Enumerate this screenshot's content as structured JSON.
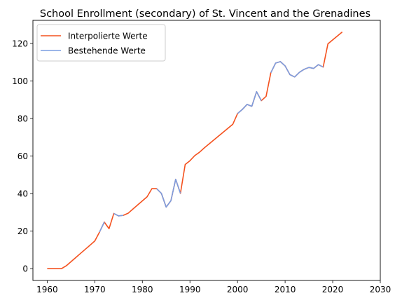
{
  "chart_data": {
    "type": "line",
    "title": "School Enrollment (secondary) of St. Vincent and the Grenadines",
    "xlabel": "",
    "ylabel": "",
    "xlim": [
      1957,
      2030
    ],
    "ylim": [
      -6.3,
      132.3
    ],
    "xticks": [
      1960,
      1970,
      1980,
      1990,
      2000,
      2010,
      2020,
      2030
    ],
    "yticks": [
      0,
      20,
      40,
      60,
      80,
      100,
      120
    ],
    "grid": false,
    "legend": "top-left",
    "series": [
      {
        "name": "Interpolierte Werte",
        "color": "#f4511e",
        "points": [
          [
            1960,
            0
          ],
          [
            1961,
            0
          ],
          [
            1962,
            0
          ],
          [
            1963,
            0
          ],
          [
            1964,
            1.5
          ],
          [
            1965,
            3.7
          ],
          [
            1966,
            5.9
          ],
          [
            1967,
            8.1
          ],
          [
            1968,
            10.3
          ],
          [
            1969,
            12.5
          ],
          [
            1970,
            14.7
          ],
          [
            1971,
            19.5
          ],
          [
            1972,
            24.8
          ],
          [
            1973,
            21.3
          ],
          [
            1974,
            29.4
          ],
          [
            1975,
            28.1
          ],
          [
            1976,
            28.4
          ],
          [
            1977,
            29.5
          ],
          [
            1978,
            31.7
          ],
          [
            1979,
            33.9
          ],
          [
            1980,
            36.1
          ],
          [
            1981,
            38.3
          ],
          [
            1982,
            42.6
          ],
          [
            1983,
            42.6
          ],
          [
            1984,
            40.1
          ],
          [
            1985,
            32.8
          ],
          [
            1986,
            36.2
          ],
          [
            1987,
            47.6
          ],
          [
            1988,
            40.1
          ],
          [
            1989,
            55.5
          ],
          [
            1990,
            57.5
          ],
          [
            1991,
            60.2
          ],
          [
            1992,
            62.0
          ],
          [
            1993,
            64.3
          ],
          [
            1994,
            66.4
          ],
          [
            1995,
            68.5
          ],
          [
            1996,
            70.6
          ],
          [
            1997,
            72.7
          ],
          [
            1998,
            74.8
          ],
          [
            1999,
            76.9
          ],
          [
            2000,
            82.6
          ],
          [
            2001,
            84.8
          ],
          [
            2002,
            87.5
          ],
          [
            2003,
            86.5
          ],
          [
            2004,
            94.3
          ],
          [
            2005,
            89.5
          ],
          [
            2006,
            91.8
          ],
          [
            2007,
            104.4
          ],
          [
            2008,
            109.5
          ],
          [
            2009,
            110.3
          ],
          [
            2010,
            108.0
          ],
          [
            2011,
            103.4
          ],
          [
            2012,
            102.1
          ],
          [
            2013,
            104.6
          ],
          [
            2014,
            106.2
          ],
          [
            2015,
            107.2
          ],
          [
            2016,
            106.7
          ],
          [
            2017,
            108.7
          ],
          [
            2018,
            107.4
          ],
          [
            2019,
            119.8
          ],
          [
            2020,
            121.9
          ],
          [
            2021,
            124.0
          ],
          [
            2022,
            126.1
          ]
        ]
      },
      {
        "name": "Bestehende Werte",
        "color": "#7a9ee2",
        "segments": [
          [
            [
              1971,
              19.5
            ],
            [
              1972,
              24.8
            ]
          ],
          [
            [
              1974,
              29.4
            ],
            [
              1975,
              28.1
            ],
            [
              1976,
              28.4
            ]
          ],
          [
            [
              1983,
              42.6
            ],
            [
              1984,
              40.1
            ],
            [
              1985,
              32.8
            ],
            [
              1986,
              36.2
            ],
            [
              1987,
              47.6
            ],
            [
              1988,
              40.1
            ]
          ],
          [
            [
              2000,
              82.6
            ],
            [
              2001,
              84.8
            ],
            [
              2002,
              87.5
            ],
            [
              2003,
              86.5
            ],
            [
              2004,
              94.3
            ],
            [
              2005,
              89.5
            ]
          ],
          [
            [
              2007,
              104.4
            ],
            [
              2008,
              109.5
            ],
            [
              2009,
              110.3
            ],
            [
              2010,
              108.0
            ],
            [
              2011,
              103.4
            ],
            [
              2012,
              102.1
            ],
            [
              2013,
              104.6
            ],
            [
              2014,
              106.2
            ],
            [
              2015,
              107.2
            ],
            [
              2016,
              106.7
            ],
            [
              2017,
              108.7
            ],
            [
              2018,
              107.4
            ]
          ]
        ]
      }
    ]
  }
}
